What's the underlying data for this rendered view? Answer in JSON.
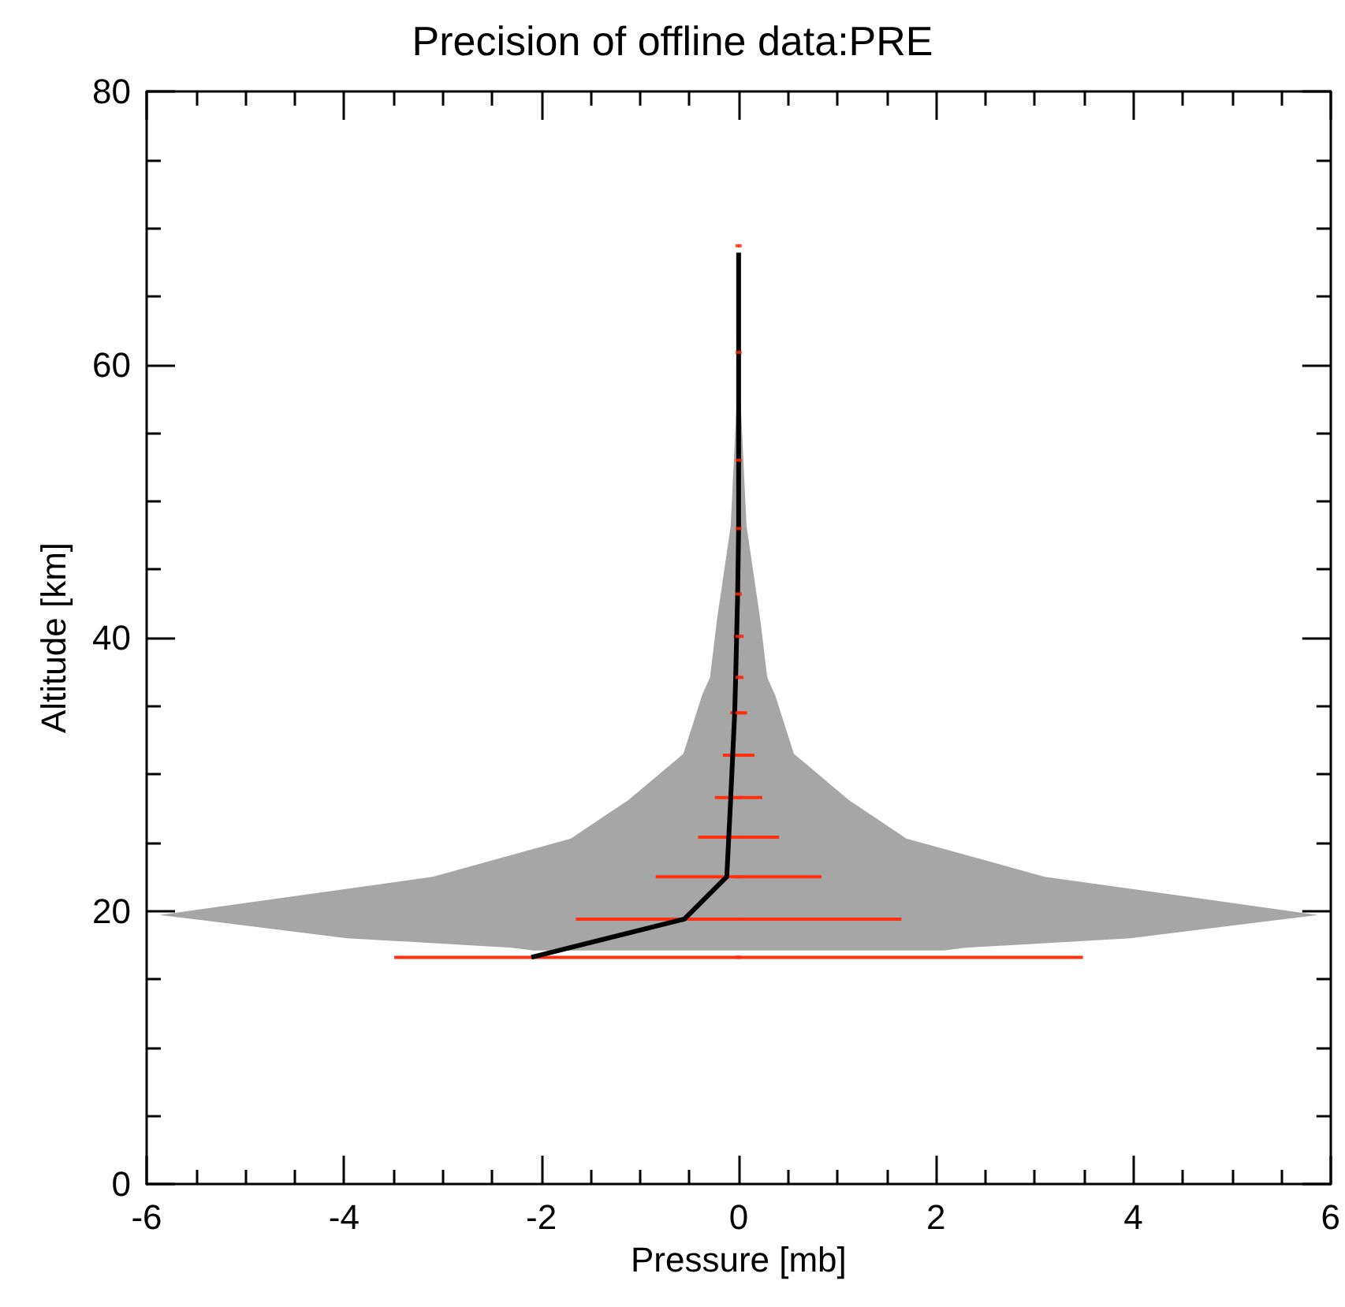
{
  "chart_data": {
    "type": "line",
    "title": "Precision of offline data:PRE",
    "xlabel": "Pressure [mb]",
    "ylabel": "Altitude [km]",
    "xlim": [
      -6,
      6
    ],
    "xticks": [
      -6,
      -4,
      -2,
      0,
      2,
      4,
      6
    ],
    "ylim": [
      0,
      80
    ],
    "yticks": [
      0,
      20,
      40,
      60,
      80
    ],
    "grid": false,
    "series": [
      {
        "type": "area",
        "color": "#a6a6a6",
        "x": [
          -2.08,
          -2.3,
          -3.97,
          -5.87,
          -3.1,
          -1.7,
          -1.12,
          -0.56,
          -0.37,
          -0.29,
          -0.22,
          -0.08,
          -0.02,
          0.02,
          0.08,
          0.22,
          0.29,
          0.37,
          0.56,
          1.12,
          1.7,
          3.1,
          5.87,
          3.97,
          2.3,
          2.08
        ],
        "values": [
          17.1,
          17.3,
          18.0,
          19.7,
          22.5,
          25.3,
          28.1,
          31.5,
          35.8,
          37.1,
          41.3,
          48.2,
          57.3,
          57.3,
          48.2,
          41.3,
          37.1,
          35.8,
          31.5,
          28.1,
          25.3,
          22.5,
          19.7,
          18.0,
          17.3,
          17.1
        ]
      },
      {
        "type": "scatter",
        "color": "#ff3010",
        "x": [
          0,
          0,
          0,
          0,
          0,
          0,
          0,
          0,
          0,
          0,
          0,
          0,
          0,
          0
        ],
        "values": [
          16.6,
          19.4,
          22.5,
          25.4,
          28.3,
          31.4,
          34.5,
          37.1,
          40.1,
          43.2,
          48,
          53,
          60.9,
          68.7
        ],
        "xerrors": [
          3.49,
          1.65,
          0.84,
          0.41,
          0.24,
          0.16,
          0.085,
          0.05,
          0.05,
          0.03,
          0.02,
          0.01,
          0.01,
          0.01
        ]
      },
      {
        "color": "#000000",
        "marker": "none",
        "x": [
          -2.1,
          -0.55,
          -0.12,
          -0.1,
          -0.08,
          -0.06,
          -0.04,
          -0.03,
          -0.02,
          -0.01,
          0,
          0,
          0,
          0
        ],
        "values": [
          16.6,
          19.4,
          22.5,
          25.4,
          28.3,
          31.4,
          34.5,
          37.1,
          40.1,
          43.2,
          48,
          53,
          60.9,
          68.2
        ]
      }
    ]
  }
}
